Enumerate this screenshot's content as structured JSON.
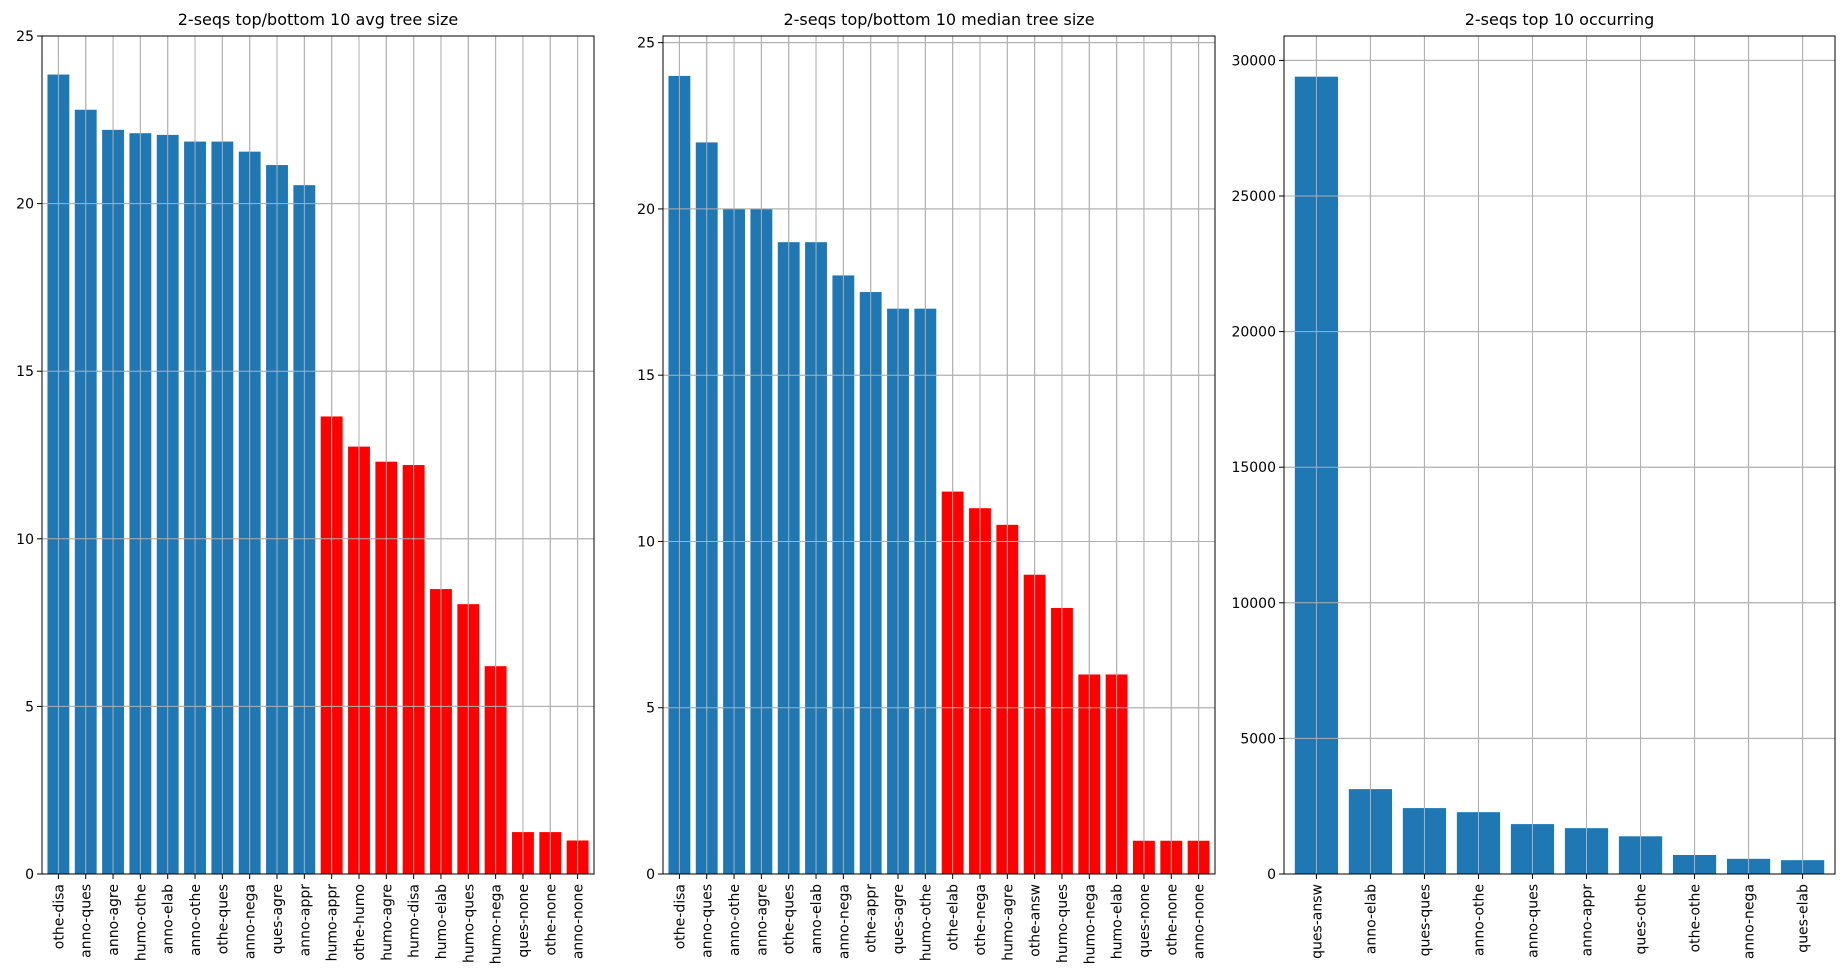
{
  "chart_data": [
    {
      "type": "bar",
      "title": "2-seqs top/bottom 10 avg tree size",
      "xlabel": "",
      "ylabel": "",
      "ylim": [
        0,
        25
      ],
      "yticks": [
        0,
        5,
        10,
        15,
        20,
        25
      ],
      "grid": true,
      "categories": [
        "othe-disa",
        "anno-ques",
        "anno-agre",
        "humo-othe",
        "anno-elab",
        "anno-othe",
        "othe-ques",
        "anno-nega",
        "ques-agre",
        "anno-appr",
        "humo-appr",
        "othe-humo",
        "humo-agre",
        "humo-disa",
        "humo-elab",
        "humo-ques",
        "humo-nega",
        "ques-none",
        "othe-none",
        "anno-none"
      ],
      "values": [
        23.85,
        22.8,
        22.2,
        22.1,
        22.05,
        21.85,
        21.85,
        21.55,
        21.15,
        20.55,
        13.65,
        12.75,
        12.3,
        12.2,
        8.5,
        8.05,
        6.2,
        1.25,
        1.25,
        1.0
      ],
      "colors": [
        "#1f77b4",
        "#1f77b4",
        "#1f77b4",
        "#1f77b4",
        "#1f77b4",
        "#1f77b4",
        "#1f77b4",
        "#1f77b4",
        "#1f77b4",
        "#1f77b4",
        "#ff0000",
        "#ff0000",
        "#ff0000",
        "#ff0000",
        "#ff0000",
        "#ff0000",
        "#ff0000",
        "#ff0000",
        "#ff0000",
        "#ff0000"
      ]
    },
    {
      "type": "bar",
      "title": "2-seqs top/bottom 10 median tree size",
      "xlabel": "",
      "ylabel": "",
      "ylim": [
        0,
        25.2
      ],
      "yticks": [
        0,
        5,
        10,
        15,
        20,
        25
      ],
      "grid": true,
      "categories": [
        "othe-disa",
        "anno-ques",
        "anno-othe",
        "anno-agre",
        "othe-ques",
        "anno-elab",
        "anno-nega",
        "othe-appr",
        "ques-agre",
        "humo-othe",
        "othe-elab",
        "othe-nega",
        "humo-agre",
        "othe-answ",
        "humo-ques",
        "humo-nega",
        "humo-elab",
        "ques-none",
        "othe-none",
        "anno-none"
      ],
      "values": [
        24,
        22,
        20,
        20,
        19,
        19,
        18,
        17.5,
        17,
        17,
        11.5,
        11,
        10.5,
        9,
        8,
        6,
        6,
        1,
        1,
        1
      ],
      "colors": [
        "#1f77b4",
        "#1f77b4",
        "#1f77b4",
        "#1f77b4",
        "#1f77b4",
        "#1f77b4",
        "#1f77b4",
        "#1f77b4",
        "#1f77b4",
        "#1f77b4",
        "#ff0000",
        "#ff0000",
        "#ff0000",
        "#ff0000",
        "#ff0000",
        "#ff0000",
        "#ff0000",
        "#ff0000",
        "#ff0000",
        "#ff0000"
      ]
    },
    {
      "type": "bar",
      "title": "2-seqs top 10 occurring",
      "xlabel": "",
      "ylabel": "",
      "ylim": [
        0,
        30900
      ],
      "yticks": [
        0,
        5000,
        10000,
        15000,
        20000,
        25000,
        30000
      ],
      "grid": true,
      "categories": [
        "ques-answ",
        "anno-elab",
        "ques-ques",
        "anno-othe",
        "anno-ques",
        "anno-appr",
        "ques-othe",
        "othe-othe",
        "anno-nega",
        "ques-elab"
      ],
      "values": [
        29400,
        3130,
        2430,
        2280,
        1840,
        1690,
        1390,
        700,
        560,
        510
      ],
      "colors": [
        "#1f77b4",
        "#1f77b4",
        "#1f77b4",
        "#1f77b4",
        "#1f77b4",
        "#1f77b4",
        "#1f77b4",
        "#1f77b4",
        "#1f77b4",
        "#1f77b4"
      ]
    }
  ]
}
